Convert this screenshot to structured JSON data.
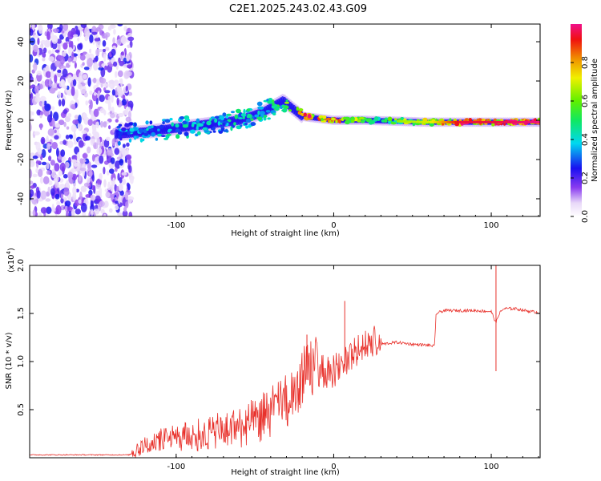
{
  "title": "C2E1.2025.243.02.43.G09",
  "chart_data": [
    {
      "type": "heatmap",
      "xlabel": "Height of straight line (km)",
      "ylabel": "Frequency (Hz)",
      "xlim": [
        -193,
        131
      ],
      "ylim": [
        -49,
        49
      ],
      "xticks": [
        -100,
        0,
        100
      ],
      "yticks": [
        -40,
        -20,
        0,
        20,
        40
      ],
      "colorbar": {
        "label": "Normalized spectral amplitude",
        "range": [
          0,
          1
        ],
        "ticks": [
          "0.0",
          "0.2",
          "0.4",
          "0.6",
          "0.8"
        ],
        "tick_values": [
          0,
          0.2,
          0.4,
          0.6,
          0.8
        ]
      },
      "ridge": {
        "description_points": [
          {
            "x": -138,
            "freq": -7,
            "amp": 0.35
          },
          {
            "x": -120,
            "freq": -6,
            "amp": 0.4
          },
          {
            "x": -100,
            "freq": -4,
            "amp": 0.45
          },
          {
            "x": -80,
            "freq": -2,
            "amp": 0.4
          },
          {
            "x": -60,
            "freq": 0,
            "amp": 0.45
          },
          {
            "x": -45,
            "freq": 4,
            "amp": 0.5
          },
          {
            "x": -32,
            "freq": 10,
            "amp": 0.55
          },
          {
            "x": -20,
            "freq": 2,
            "amp": 0.9
          },
          {
            "x": 0,
            "freq": 0,
            "amp": 0.95
          },
          {
            "x": 20,
            "freq": 0,
            "amp": 0.6
          },
          {
            "x": 60,
            "freq": -1,
            "amp": 0.7
          },
          {
            "x": 80,
            "freq": -1,
            "amp": 0.95
          },
          {
            "x": 100,
            "freq": -1,
            "amp": 0.95
          },
          {
            "x": 131,
            "freq": -1,
            "amp": 1.0
          }
        ]
      }
    },
    {
      "type": "line",
      "xlabel": "Height of straight line (km)",
      "ylabel": "SNR (10 * v/v)",
      "scale_label": "(x10",
      "scale_exp": "4",
      "xlim": [
        -193,
        131
      ],
      "ylim": [
        0,
        2.0
      ],
      "xticks": [
        -100,
        0,
        100
      ],
      "yticks": [
        0.5,
        1.0,
        1.5,
        2.0
      ],
      "ytick_labels": [
        "0.5",
        "1.0",
        "1.5",
        "2.0"
      ],
      "color": "#e8302a",
      "series": [
        {
          "name": "SNR",
          "x": [
            -193,
            -130,
            -125,
            -110,
            -90,
            -70,
            -50,
            -35,
            -25,
            -20,
            -15,
            -10,
            0,
            10,
            20,
            30,
            40,
            50,
            60,
            64,
            65,
            70,
            80,
            90,
            100,
            103,
            105,
            108,
            115,
            125,
            131
          ],
          "values": [
            0.03,
            0.03,
            0.06,
            0.15,
            0.18,
            0.22,
            0.3,
            0.45,
            0.55,
            0.75,
            0.85,
            0.85,
            0.85,
            1.0,
            1.1,
            1.18,
            1.2,
            1.18,
            1.17,
            1.16,
            1.5,
            1.53,
            1.53,
            1.53,
            1.52,
            1.4,
            1.5,
            1.55,
            1.55,
            1.52,
            1.51
          ]
        }
      ],
      "spikes": [
        {
          "x": 7,
          "y": 1.63
        },
        {
          "x": -17,
          "y": 1.28
        },
        {
          "x": 103,
          "y": 2.0
        },
        {
          "x": 103,
          "y": 0.9
        }
      ]
    }
  ]
}
